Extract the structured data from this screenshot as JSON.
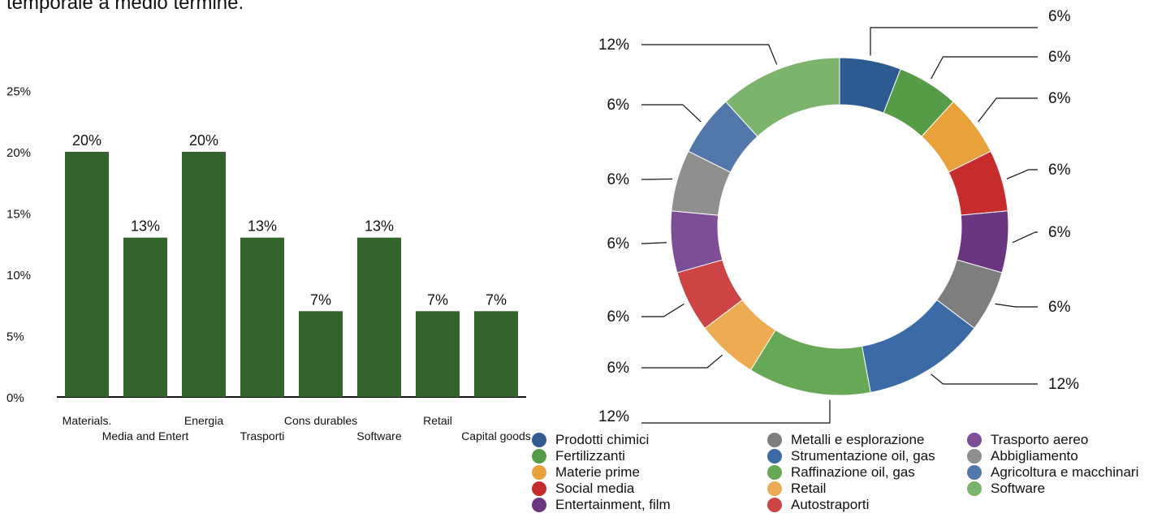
{
  "header": {
    "text": "temporale a medio termine."
  },
  "chart_data": [
    {
      "type": "bar",
      "categories": [
        "Materials.",
        "Media and Entert",
        "Energia",
        "Trasporti",
        "Cons durables",
        "Software",
        "Retail",
        "Capital goods"
      ],
      "values": [
        20,
        13,
        20,
        13,
        7,
        13,
        7,
        7
      ],
      "data_labels": [
        "20%",
        "13%",
        "20%",
        "13%",
        "7%",
        "13%",
        "7%",
        "7%"
      ],
      "yticks": [
        "0%",
        "5%",
        "10%",
        "15%",
        "20%",
        "25%"
      ],
      "ylim": [
        0,
        25
      ],
      "bar_color": "#32642b",
      "grid": false
    },
    {
      "type": "pie",
      "style": "donut",
      "slices": [
        {
          "name": "Prodotti chimici",
          "value": 6,
          "label": "6%",
          "color": "#2e5a92"
        },
        {
          "name": "Fertilizzanti",
          "value": 6,
          "label": "6%",
          "color": "#569c46"
        },
        {
          "name": "Materie prime",
          "value": 6,
          "label": "6%",
          "color": "#e9a23a"
        },
        {
          "name": "Social media",
          "value": 6,
          "label": "6%",
          "color": "#c62c2c"
        },
        {
          "name": "Entertainment, film",
          "value": 6,
          "label": "6%",
          "color": "#6a3680"
        },
        {
          "name": "Metalli e esplorazione",
          "value": 6,
          "label": "6%",
          "color": "#7e7e7e"
        },
        {
          "name": "Strumentazione oil, gas",
          "value": 12,
          "label": "12%",
          "color": "#3c6aa6"
        },
        {
          "name": "Raffinazione oil, gas",
          "value": 12,
          "label": "12%",
          "color": "#67a857"
        },
        {
          "name": "Retail",
          "value": 6,
          "label": "6%",
          "color": "#eeac52"
        },
        {
          "name": "Autostraporti",
          "value": 6,
          "label": "6%",
          "color": "#cd4444"
        },
        {
          "name": "Trasporto aereo",
          "value": 6,
          "label": "6%",
          "color": "#7d4d95"
        },
        {
          "name": "Abbigliamento",
          "value": 6,
          "label": "6%",
          "color": "#8f8f8f"
        },
        {
          "name": "Agricoltura e macchinari",
          "value": 6,
          "label": "6%",
          "color": "#5278ab"
        },
        {
          "name": "Software",
          "value": 12,
          "label": "12%",
          "color": "#7db46d"
        }
      ],
      "legend_position": "bottom"
    }
  ]
}
